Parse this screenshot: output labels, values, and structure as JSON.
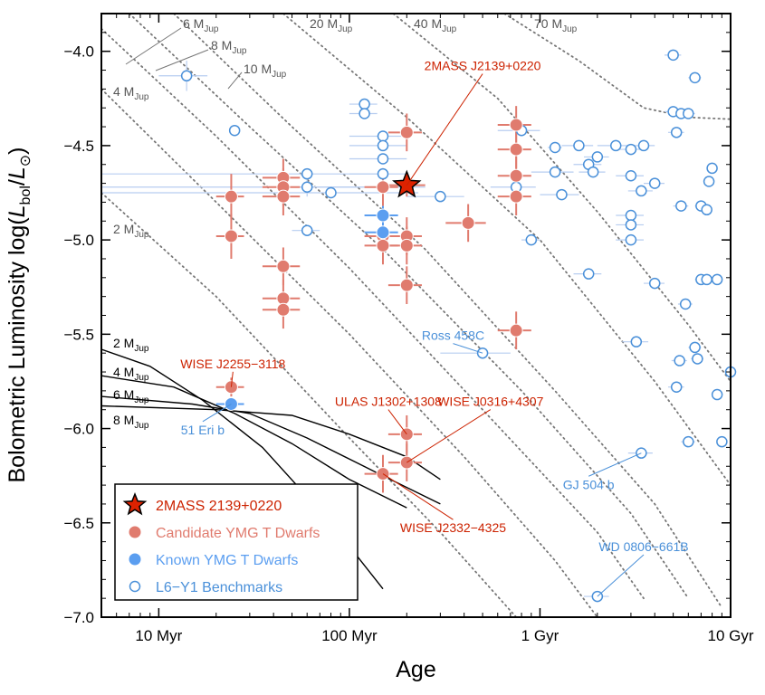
{
  "chart_data": {
    "type": "scatter",
    "xlabel": "Age",
    "ylabel": "Bolometric Luminosity log(L_bol/L_⊙)",
    "x_scale": "log",
    "xlim_gyr": [
      0.005,
      10
    ],
    "ylim": [
      -7.0,
      -3.8
    ],
    "x_ticks": [
      {
        "value": 0.01,
        "label": "10 Myr"
      },
      {
        "value": 0.1,
        "label": "100 Myr"
      },
      {
        "value": 1,
        "label": "1 Gyr"
      },
      {
        "value": 10,
        "label": "10 Gyr"
      }
    ],
    "y_ticks": [
      {
        "value": -4.0,
        "label": "−4.0"
      },
      {
        "value": -4.5,
        "label": "−4.5"
      },
      {
        "value": -5.0,
        "label": "−5.0"
      },
      {
        "value": -5.5,
        "label": "−5.5"
      },
      {
        "value": -6.0,
        "label": "−6.0"
      },
      {
        "value": -6.5,
        "label": "−6.5"
      },
      {
        "value": -7.0,
        "label": "−7.0"
      }
    ],
    "ylabel_parts": {
      "prefix": "Bolometric Luminosity log(",
      "L": "L",
      "sub_bol": "bol",
      "slash": "/",
      "L2": "L",
      "sun": "⊙",
      "suffix": ")"
    },
    "isochrone_label_sub": "Jup",
    "dotted_isomass": [
      {
        "label": "2 M",
        "points": [
          [
            0.005,
            -4.75
          ],
          [
            0.02,
            -5.3
          ],
          [
            0.1,
            -6.05
          ],
          [
            0.3,
            -6.55
          ],
          [
            0.75,
            -7.0
          ]
        ]
      },
      {
        "label": "4 M",
        "points": [
          [
            0.005,
            -4.2
          ],
          [
            0.02,
            -4.8
          ],
          [
            0.1,
            -5.5
          ],
          [
            0.4,
            -6.15
          ],
          [
            1.2,
            -6.7
          ],
          [
            2.0,
            -7.0
          ]
        ]
      },
      {
        "label": "6 M",
        "points": [
          [
            0.005,
            -3.88
          ],
          [
            0.02,
            -4.45
          ],
          [
            0.1,
            -5.15
          ],
          [
            0.5,
            -5.9
          ],
          [
            2.0,
            -6.55
          ],
          [
            3.5,
            -6.9
          ]
        ]
      },
      {
        "label": "8 M",
        "points": [
          [
            0.007,
            -3.8
          ],
          [
            0.03,
            -4.4
          ],
          [
            0.15,
            -5.05
          ],
          [
            0.8,
            -5.8
          ],
          [
            3.0,
            -6.45
          ],
          [
            6.0,
            -6.9
          ]
        ]
      },
      {
        "label": "10 M",
        "points": [
          [
            0.012,
            -3.8
          ],
          [
            0.05,
            -4.4
          ],
          [
            0.25,
            -5.05
          ],
          [
            1.2,
            -5.8
          ],
          [
            4.0,
            -6.4
          ],
          [
            9.0,
            -6.95
          ]
        ]
      },
      {
        "label": "20 M",
        "points": [
          [
            0.045,
            -3.8
          ],
          [
            0.2,
            -4.35
          ],
          [
            1.0,
            -5.0
          ],
          [
            4.0,
            -5.75
          ],
          [
            10,
            -6.3
          ]
        ]
      },
      {
        "label": "40 M",
        "points": [
          [
            0.17,
            -3.8
          ],
          [
            0.6,
            -4.25
          ],
          [
            2.0,
            -4.85
          ],
          [
            6.0,
            -5.45
          ],
          [
            10,
            -5.75
          ]
        ]
      },
      {
        "label": "70 M",
        "points": [
          [
            0.65,
            -3.8
          ],
          [
            1.6,
            -4.05
          ],
          [
            3.5,
            -4.3
          ],
          [
            6.0,
            -4.35
          ],
          [
            10,
            -4.36
          ]
        ]
      }
    ],
    "solid_isomass": [
      {
        "label": "2 M",
        "points": [
          [
            0.005,
            -5.58
          ],
          [
            0.009,
            -5.67
          ],
          [
            0.017,
            -5.85
          ],
          [
            0.035,
            -6.1
          ],
          [
            0.08,
            -6.5
          ],
          [
            0.15,
            -6.85
          ]
        ]
      },
      {
        "label": "4 M",
        "points": [
          [
            0.005,
            -5.72
          ],
          [
            0.012,
            -5.78
          ],
          [
            0.025,
            -5.92
          ],
          [
            0.05,
            -6.08
          ],
          [
            0.1,
            -6.27
          ],
          [
            0.2,
            -6.42
          ]
        ]
      },
      {
        "label": "6 M",
        "points": [
          [
            0.005,
            -5.83
          ],
          [
            0.015,
            -5.87
          ],
          [
            0.03,
            -5.92
          ],
          [
            0.06,
            -6.05
          ],
          [
            0.15,
            -6.25
          ],
          [
            0.3,
            -6.4
          ]
        ]
      },
      {
        "label": "8 M",
        "points": [
          [
            0.005,
            -5.88
          ],
          [
            0.02,
            -5.9
          ],
          [
            0.05,
            -5.93
          ],
          [
            0.1,
            -6.03
          ],
          [
            0.2,
            -6.15
          ],
          [
            0.3,
            -6.27
          ]
        ]
      }
    ],
    "series": [
      {
        "name": "L6−Y1 Benchmarks",
        "marker": "open-circle",
        "color": "#4a90d9",
        "points": [
          [
            0.014,
            -4.13,
            0.004,
            0.08
          ],
          [
            0.025,
            -4.42,
            0.0,
            0.0
          ],
          [
            0.06,
            -4.65,
            0.1,
            0.0
          ],
          [
            0.06,
            -4.72,
            0.1,
            0.05
          ],
          [
            0.06,
            -4.95,
            0.01,
            0.0
          ],
          [
            0.08,
            -4.75,
            0.15,
            0.0
          ],
          [
            0.12,
            -4.28,
            0.02,
            0.0
          ],
          [
            0.12,
            -4.33,
            0.02,
            0.0
          ],
          [
            0.15,
            -4.45,
            0.05,
            0.0
          ],
          [
            0.15,
            -4.5,
            0.05,
            0.0
          ],
          [
            0.15,
            -4.57,
            0.05,
            0.0
          ],
          [
            0.15,
            -4.65,
            0.05,
            0.0
          ],
          [
            0.15,
            -4.72,
            0.1,
            0.0
          ],
          [
            0.3,
            -4.77,
            0.1,
            0.0
          ],
          [
            0.5,
            -5.6,
            0.2,
            0.0
          ],
          [
            0.75,
            -4.72,
            0.2,
            0.0
          ],
          [
            0.8,
            -4.42,
            0.2,
            0.0
          ],
          [
            0.9,
            -5.0,
            0.1,
            0.0
          ],
          [
            1.2,
            -4.51,
            0.1,
            0.0
          ],
          [
            1.2,
            -4.64,
            0.3,
            0.0
          ],
          [
            1.3,
            -4.76,
            0.3,
            0.0
          ],
          [
            1.6,
            -4.5,
            0.3,
            0.0
          ],
          [
            1.8,
            -5.18,
            0.3,
            0.0
          ],
          [
            1.8,
            -4.6,
            0.3,
            0.0
          ],
          [
            1.9,
            -4.64,
            0.3,
            0.0
          ],
          [
            2.0,
            -4.56,
            0.3,
            0.0
          ],
          [
            2.0,
            -6.89,
            0.3,
            0.0
          ],
          [
            2.5,
            -4.5,
            0.5,
            0.0
          ],
          [
            3.0,
            -4.52,
            0.5,
            0.0
          ],
          [
            3.0,
            -4.66,
            0.5,
            0.0
          ],
          [
            3.0,
            -4.87,
            0.5,
            0.0
          ],
          [
            3.0,
            -4.92,
            0.5,
            0.0
          ],
          [
            3.0,
            -5.0,
            0.5,
            0.0
          ],
          [
            3.2,
            -5.54,
            0.5,
            0.0
          ],
          [
            3.4,
            -6.13,
            0.5,
            0.0
          ],
          [
            3.4,
            -4.74,
            0.5,
            0.0
          ],
          [
            3.5,
            -4.5,
            0.5,
            0.0
          ],
          [
            4.0,
            -5.23,
            0.5,
            0.0
          ],
          [
            4.0,
            -4.7,
            0.5,
            0.0
          ],
          [
            5.0,
            -4.02,
            0.5,
            0.0
          ],
          [
            5.0,
            -4.32,
            0.5,
            0.0
          ],
          [
            5.2,
            -4.43,
            0.5,
            0.0
          ],
          [
            5.2,
            -5.78,
            0.5,
            0.0
          ],
          [
            5.4,
            -5.64,
            0.5,
            0.0
          ],
          [
            5.5,
            -4.33,
            0.5,
            0.0
          ],
          [
            5.5,
            -4.82,
            0.5,
            0.0
          ],
          [
            5.8,
            -5.34,
            0.5,
            0.0
          ],
          [
            6.0,
            -4.33,
            0.5,
            0.0
          ],
          [
            6.0,
            -6.07,
            0.5,
            0.0
          ],
          [
            6.5,
            -4.14,
            0.5,
            0.0
          ],
          [
            6.5,
            -5.57,
            0.5,
            0.0
          ],
          [
            6.7,
            -5.63,
            0.5,
            0.0
          ],
          [
            7.0,
            -4.82,
            0.5,
            0.0
          ],
          [
            7.0,
            -5.21,
            0.5,
            0.0
          ],
          [
            7.5,
            -4.84,
            0.5,
            0.0
          ],
          [
            7.5,
            -5.21,
            0.5,
            0.0
          ],
          [
            7.7,
            -4.69,
            0.5,
            0.0
          ],
          [
            8.0,
            -4.62,
            0.5,
            0.0
          ],
          [
            8.5,
            -5.82,
            0.5,
            0.0
          ],
          [
            8.5,
            -5.21,
            0.5,
            0.0
          ],
          [
            9.0,
            -6.07,
            0.5,
            0.0
          ],
          [
            10.0,
            -5.7,
            0.5,
            0.0
          ]
        ]
      },
      {
        "name": "Candidate YMG T Dwarfs",
        "marker": "filled-circle",
        "color": "#e07b6e",
        "points": [
          [
            0.024,
            -4.77,
            0.004,
            0.12
          ],
          [
            0.024,
            -4.98,
            0.004,
            0.12
          ],
          [
            0.024,
            -5.78,
            0.004,
            0.05
          ],
          [
            0.045,
            -4.67,
            0.01,
            0.1
          ],
          [
            0.045,
            -4.72,
            0.01,
            0.1
          ],
          [
            0.045,
            -4.77,
            0.01,
            0.1
          ],
          [
            0.045,
            -5.14,
            0.01,
            0.1
          ],
          [
            0.045,
            -5.31,
            0.01,
            0.1
          ],
          [
            0.045,
            -5.37,
            0.01,
            0.1
          ],
          [
            0.15,
            -4.72,
            0.03,
            0.1
          ],
          [
            0.15,
            -4.98,
            0.03,
            0.1
          ],
          [
            0.15,
            -5.03,
            0.03,
            0.1
          ],
          [
            0.15,
            -6.24,
            0.03,
            0.1
          ],
          [
            0.2,
            -4.43,
            0.04,
            0.1
          ],
          [
            0.2,
            -4.98,
            0.04,
            0.1
          ],
          [
            0.2,
            -5.03,
            0.04,
            0.1
          ],
          [
            0.2,
            -5.24,
            0.04,
            0.1
          ],
          [
            0.2,
            -6.03,
            0.04,
            0.1
          ],
          [
            0.2,
            -6.18,
            0.04,
            0.1
          ],
          [
            0.42,
            -4.91,
            0.1,
            0.1
          ],
          [
            0.75,
            -4.39,
            0.15,
            0.1
          ],
          [
            0.75,
            -4.52,
            0.15,
            0.1
          ],
          [
            0.75,
            -4.66,
            0.15,
            0.1
          ],
          [
            0.75,
            -4.77,
            0.15,
            0.1
          ],
          [
            0.75,
            -5.48,
            0.15,
            0.1
          ]
        ]
      },
      {
        "name": "Known YMG T Dwarfs",
        "marker": "filled-circle",
        "color": "#5b9ef0",
        "points": [
          [
            0.024,
            -5.87,
            0.004,
            0.02
          ],
          [
            0.15,
            -4.87,
            0.03,
            0.05
          ],
          [
            0.15,
            -4.96,
            0.03,
            0.05
          ]
        ]
      },
      {
        "name": "2MASS 2139+0220",
        "marker": "star",
        "color": "#dd2200",
        "points": [
          [
            0.2,
            -4.71,
            0.05,
            0.06
          ]
        ]
      }
    ],
    "annotations": [
      {
        "text": "2MASS J2139+0220",
        "color": "red",
        "anchor": [
          0.2,
          -4.71
        ],
        "pos": [
          0.5,
          -4.1
        ]
      },
      {
        "text": "WISE J2255−3118",
        "color": "red",
        "anchor": [
          0.024,
          -5.78
        ],
        "pos": [
          0.0245,
          -5.68
        ]
      },
      {
        "text": "ULAS J1302+1308",
        "color": "red",
        "anchor": [
          0.2,
          -6.03
        ],
        "pos": [
          0.16,
          -5.88
        ]
      },
      {
        "text": "WISE J0316+4307",
        "color": "red",
        "anchor": [
          0.2,
          -6.18
        ],
        "pos": [
          0.55,
          -5.88
        ]
      },
      {
        "text": "WISE J2332−4325",
        "color": "red",
        "anchor": [
          0.15,
          -6.24
        ],
        "pos": [
          0.35,
          -6.55
        ]
      },
      {
        "text": "Ross 458C",
        "color": "blue",
        "anchor": [
          0.5,
          -5.6
        ],
        "pos": [
          0.35,
          -5.53
        ]
      },
      {
        "text": "51 Eri b",
        "color": "blue",
        "anchor": [
          0.024,
          -5.87
        ],
        "pos": [
          0.017,
          -6.03
        ]
      },
      {
        "text": "GJ 504 b",
        "color": "blue",
        "anchor": [
          3.4,
          -6.13
        ],
        "pos": [
          1.8,
          -6.32
        ]
      },
      {
        "text": "WD 0806−661B",
        "color": "blue",
        "anchor": [
          2.0,
          -6.89
        ],
        "pos": [
          3.5,
          -6.65
        ]
      }
    ],
    "legend": {
      "placement": "lower-left",
      "entries": [
        {
          "label": "2MASS 2139+0220",
          "marker": "star",
          "color": "#dd2200"
        },
        {
          "label": "Candidate YMG T Dwarfs",
          "marker": "filled-circle",
          "color": "#e07b6e"
        },
        {
          "label": "Known YMG T Dwarfs",
          "marker": "filled-circle",
          "color": "#5b9ef0"
        },
        {
          "label": "L6−Y1 Benchmarks",
          "marker": "open-circle",
          "color": "#4a90d9"
        }
      ]
    }
  }
}
